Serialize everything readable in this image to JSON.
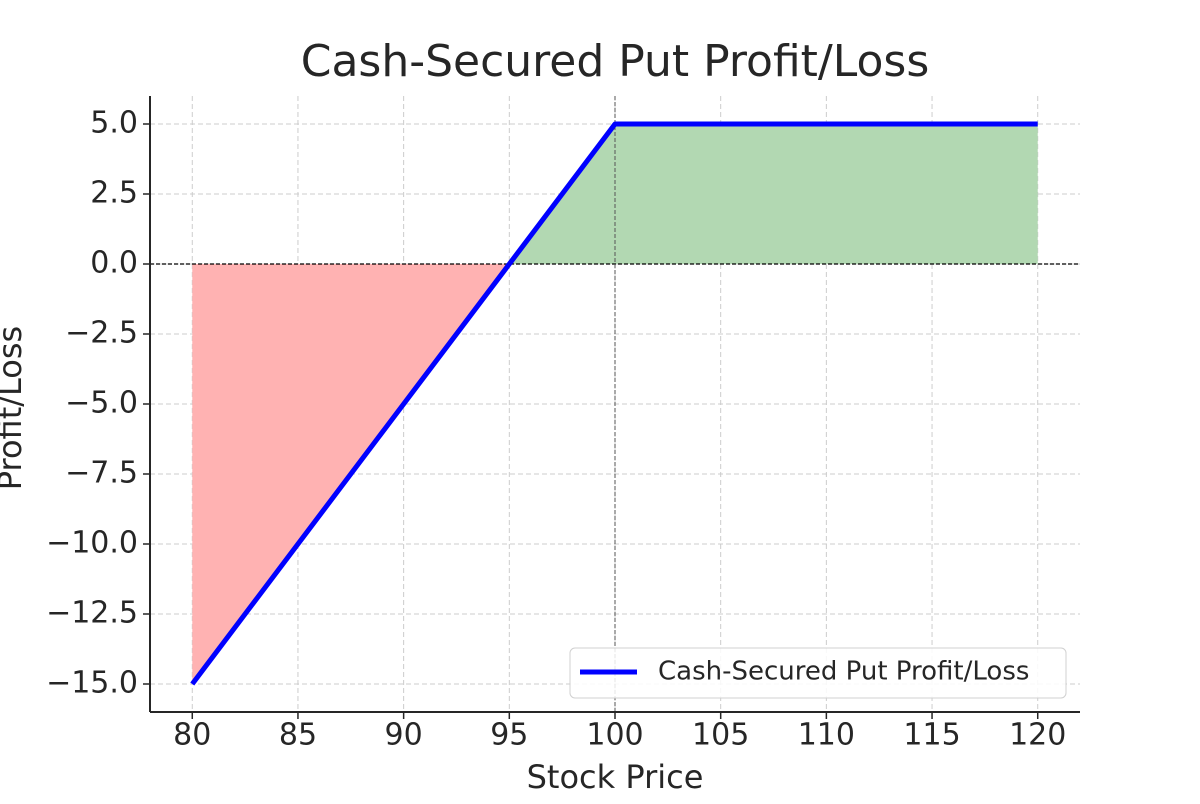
{
  "chart_data": {
    "type": "line",
    "title": "Cash-Secured Put Profit/Loss",
    "x_label": "Stock Price",
    "y_label": "Profit/Loss",
    "x": [
      80,
      100,
      120
    ],
    "series": [
      {
        "name": "Cash-Secured Put Profit/Loss",
        "color": "#0000ff",
        "values": [
          -15,
          5,
          5
        ]
      }
    ],
    "fill_positive": "#b2d8b2",
    "fill_negative": "#ffb2b2",
    "xlim": [
      78,
      122
    ],
    "ylim": [
      -16,
      6
    ],
    "xticks": [
      80,
      85,
      90,
      95,
      100,
      105,
      110,
      115,
      120
    ],
    "yticks": [
      {
        "value": 5,
        "label": "5.0"
      },
      {
        "value": 2.5,
        "label": "2.5"
      },
      {
        "value": 0,
        "label": "0.0"
      },
      {
        "value": -2.5,
        "label": "−2.5"
      },
      {
        "value": -5,
        "label": "−5.0"
      },
      {
        "value": -7.5,
        "label": "−7.5"
      },
      {
        "value": -10,
        "label": "−10.0"
      },
      {
        "value": -12.5,
        "label": "−12.5"
      },
      {
        "value": -15,
        "label": "−15.0"
      }
    ],
    "hlines": [
      0
    ],
    "vlines": [
      100
    ],
    "grid": true,
    "legend": "lower right"
  }
}
